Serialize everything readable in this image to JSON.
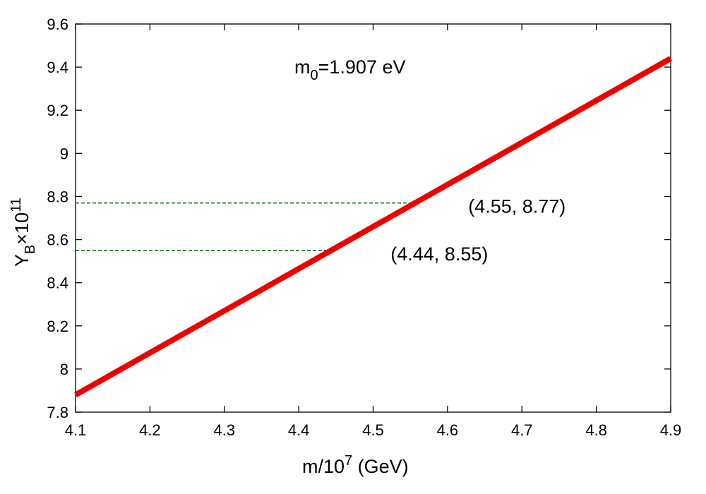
{
  "chart_data": {
    "type": "line",
    "xlim": [
      4.1,
      4.9
    ],
    "ylim": [
      7.8,
      9.6
    ],
    "x_ticks": [
      "4.1",
      "4.2",
      "4.3",
      "4.4",
      "4.5",
      "4.6",
      "4.7",
      "4.8",
      "4.9"
    ],
    "y_ticks": [
      "7.8",
      "8",
      "8.2",
      "8.4",
      "8.6",
      "8.8",
      "9",
      "9.2",
      "9.4",
      "9.6"
    ],
    "xlabel": {
      "base": "m/10",
      "sup": "7",
      "tail": " (GeV)"
    },
    "ylabel": {
      "base": "Y",
      "sub": "B",
      "mid": "×10",
      "sup": "11"
    },
    "annotation": {
      "base": "m",
      "sub": "0",
      "tail": "=1.907 eV"
    },
    "grid": false,
    "series": [
      {
        "color": "#ee0000",
        "x": [
          4.1,
          4.9
        ],
        "y": [
          7.88,
          9.44
        ]
      }
    ],
    "reference_points": [
      {
        "x": 4.55,
        "y": 8.77,
        "label": "(4.55, 8.77)",
        "color": "#006400"
      },
      {
        "x": 4.44,
        "y": 8.55,
        "label": "(4.44, 8.55)",
        "color": "#006400"
      }
    ]
  }
}
